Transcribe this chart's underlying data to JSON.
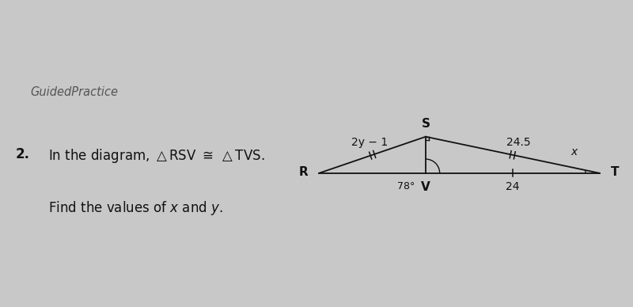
{
  "bg_color": "#c8c8c8",
  "text_color": "#111111",
  "guided_practice_text": "GuidedPractice",
  "label_RS": "2y − 1",
  "label_ST": "24.5",
  "label_VT": "24",
  "label_angle_V": "78°",
  "label_x_angle": "x",
  "label_R": "R",
  "label_S": "S",
  "label_V": "V",
  "label_T": "T",
  "R": [
    0.0,
    0.0
  ],
  "S": [
    0.38,
    0.13
  ],
  "V": [
    0.38,
    0.0
  ],
  "T": [
    1.0,
    0.0
  ]
}
